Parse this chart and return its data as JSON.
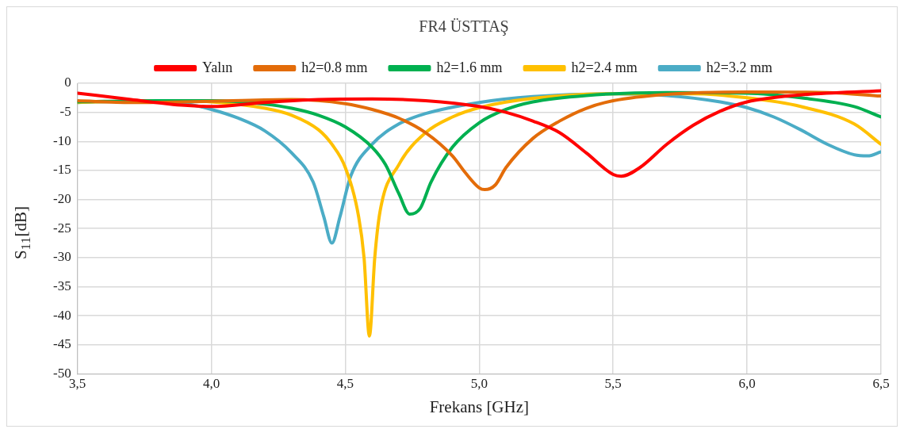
{
  "chart_data": {
    "type": "line",
    "title": "FR4 ÜSTTAŞ",
    "xlabel": "Frekans [GHz]",
    "ylabel": "S$_{11}$[dB]",
    "xlim": [
      3.5,
      6.5
    ],
    "xticks": [
      {
        "value": 3.5,
        "label": "3,5"
      },
      {
        "value": 4,
        "label": "4,0"
      },
      {
        "value": 4.5,
        "label": "4,5"
      },
      {
        "value": 5,
        "label": "5,0"
      },
      {
        "value": 5.5,
        "label": "5,5"
      },
      {
        "value": 6,
        "label": "6,0"
      },
      {
        "value": 6.5,
        "label": "6,5"
      }
    ],
    "ylim": [
      -50,
      0
    ],
    "yticks": [
      -50,
      -45,
      -40,
      -35,
      -30,
      -25,
      -20,
      -15,
      -10,
      -5,
      0
    ],
    "grid": true,
    "legend": "top",
    "marker": "none",
    "line_style": "solid",
    "series": [
      {
        "name": "Yalın",
        "color": "#ff0000",
        "x": [
          3.5,
          3.7,
          3.9,
          4.0,
          4.2,
          4.4,
          4.6,
          4.8,
          5.0,
          5.1,
          5.2,
          5.3,
          5.4,
          5.5,
          5.53,
          5.6,
          5.7,
          5.8,
          5.9,
          6.0,
          6.2,
          6.5
        ],
        "values": [
          -1.7,
          -2.8,
          -3.8,
          -4.0,
          -3.3,
          -2.8,
          -2.7,
          -3.0,
          -4.0,
          -5.0,
          -6.5,
          -8.5,
          -12,
          -15.7,
          -16,
          -14.5,
          -10.5,
          -7.2,
          -4.8,
          -3.2,
          -2.0,
          -1.3
        ]
      },
      {
        "name": "h2=0.8 mm",
        "color": "#e36c09",
        "x": [
          3.5,
          3.7,
          4.0,
          4.3,
          4.5,
          4.6,
          4.7,
          4.8,
          4.9,
          4.95,
          5.0,
          5.02,
          5.06,
          5.1,
          5.2,
          5.3,
          5.4,
          5.5,
          5.7,
          6.0,
          6.3,
          6.5
        ],
        "values": [
          -3,
          -3.3,
          -3.1,
          -2.8,
          -3.5,
          -4.5,
          -6,
          -8.5,
          -12.5,
          -15.5,
          -18,
          -18.3,
          -17.5,
          -14.5,
          -9.5,
          -6.5,
          -4.3,
          -3,
          -1.9,
          -1.5,
          -1.6,
          -2.2
        ]
      },
      {
        "name": "h2=1.6 mm",
        "color": "#00b050",
        "x": [
          3.5,
          3.8,
          4.0,
          4.2,
          4.3,
          4.4,
          4.5,
          4.6,
          4.65,
          4.7,
          4.74,
          4.78,
          4.82,
          4.9,
          5.0,
          5.1,
          5.2,
          5.4,
          5.7,
          6.0,
          6.2,
          6.4,
          6.5
        ],
        "values": [
          -3.2,
          -3,
          -3.0,
          -3.6,
          -4.3,
          -5.5,
          -7.5,
          -11,
          -14,
          -19,
          -22.5,
          -21.5,
          -17,
          -11,
          -6.8,
          -4.5,
          -3.2,
          -2.1,
          -1.6,
          -1.7,
          -2.5,
          -4,
          -5.8
        ]
      },
      {
        "name": "h2=2.4 mm",
        "color": "#ffc000",
        "x": [
          3.5,
          3.8,
          4.0,
          4.2,
          4.3,
          4.4,
          4.45,
          4.5,
          4.55,
          4.57,
          4.59,
          4.61,
          4.63,
          4.7,
          4.8,
          4.9,
          5.0,
          5.2,
          5.5,
          5.8,
          6.0,
          6.2,
          6.4,
          6.5
        ],
        "values": [
          -3.3,
          -3,
          -3.2,
          -4.3,
          -5.5,
          -8,
          -10.5,
          -14.5,
          -23,
          -30,
          -43.5,
          -30,
          -22,
          -14,
          -8.5,
          -5.8,
          -4.2,
          -2.6,
          -1.8,
          -1.8,
          -2.5,
          -4,
          -7,
          -10.5
        ]
      },
      {
        "name": "h2=3.2 mm",
        "color": "#4bacc6",
        "x": [
          3.5,
          3.7,
          3.9,
          4.0,
          4.1,
          4.2,
          4.3,
          4.38,
          4.42,
          4.45,
          4.48,
          4.52,
          4.6,
          4.7,
          4.8,
          5.0,
          5.2,
          5.5,
          5.7,
          5.9,
          6.0,
          6.1,
          6.2,
          6.3,
          6.4,
          6.45,
          6.5
        ],
        "values": [
          -3.3,
          -3.1,
          -3.5,
          -4.5,
          -6,
          -8.2,
          -12,
          -17,
          -23,
          -27.5,
          -23,
          -16,
          -10.5,
          -7,
          -5.2,
          -3.3,
          -2.3,
          -1.8,
          -2.1,
          -3.2,
          -4.2,
          -5.8,
          -8,
          -10.5,
          -12.3,
          -12.5,
          -11.8
        ]
      }
    ]
  }
}
